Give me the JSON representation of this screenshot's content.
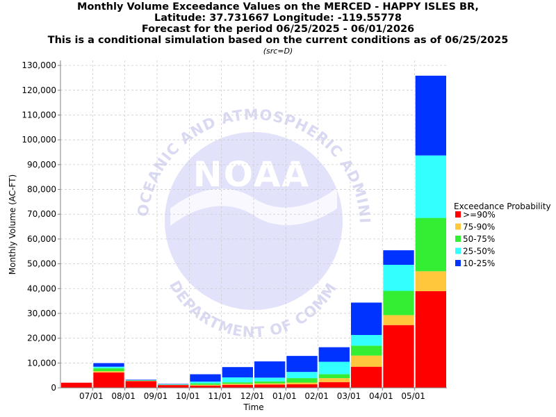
{
  "header": {
    "title_lines": [
      "Monthly Volume Exceedance Values on the MERCED - HAPPY ISLES BR,",
      "Latitude: 37.731667 Longitude: -119.55778",
      "Forecast for the period 06/25/2025 - 06/01/2026",
      "This is a conditional simulation based on the current conditions as of 06/25/2025"
    ],
    "src_note": "(src=D)"
  },
  "watermark": {
    "logo_text": "NOAA",
    "arc_top": "NATIONAL OCEANIC AND ATMOSPHERIC ADMINISTRATION",
    "arc_bottom": "U.S. DEPARTMENT OF COMMERCE"
  },
  "chart_data": {
    "type": "bar",
    "stacked": true,
    "xlabel": "Time",
    "ylabel": "Monthly Volume (AC-FT)",
    "ylim": [
      0,
      132000
    ],
    "yticks": [
      0,
      10000,
      20000,
      30000,
      40000,
      50000,
      60000,
      70000,
      80000,
      90000,
      100000,
      110000,
      120000,
      130000
    ],
    "ytick_labels": [
      "0",
      "10,000",
      "20,000",
      "30,000",
      "40,000",
      "50,000",
      "60,000",
      "70,000",
      "80,000",
      "90,000",
      "100,000",
      "110,000",
      "120,000",
      "130,000"
    ],
    "x_tick_labels": [
      "07/01",
      "08/01",
      "09/01",
      "10/01",
      "11/01",
      "12/01",
      "01/01",
      "02/01",
      "03/01",
      "04/01",
      "05/01"
    ],
    "grid": true,
    "legend_title": "Exceedance Probability",
    "legend_position": "right",
    "periods": [
      "2025-06",
      "2025-07",
      "2025-08",
      "2025-09",
      "2025-10",
      "2025-11",
      "2025-12",
      "2026-01",
      "2026-02",
      "2026-03",
      "2026-04",
      "2026-05"
    ],
    "series": [
      {
        "name": ">=90%",
        "color": "#ff0000",
        "values": [
          2200,
          6200,
          2700,
          1100,
          900,
          1200,
          1300,
          1400,
          2300,
          8500,
          25300,
          39000
        ]
      },
      {
        "name": "75-90%",
        "color": "#ffc83c",
        "values": [
          0,
          500,
          100,
          80,
          300,
          400,
          500,
          700,
          1600,
          4500,
          4000,
          8000
        ]
      },
      {
        "name": "50-75%",
        "color": "#33ee33",
        "values": [
          0,
          1200,
          150,
          120,
          600,
          600,
          800,
          1800,
          1600,
          4000,
          9800,
          21500
        ]
      },
      {
        "name": "25-50%",
        "color": "#33ffff",
        "values": [
          0,
          600,
          100,
          100,
          700,
          2000,
          1500,
          2500,
          5000,
          4300,
          10500,
          25200
        ]
      },
      {
        "name": "10-25%",
        "color": "#0033ff",
        "values": [
          0,
          1600,
          350,
          300,
          3100,
          4300,
          6700,
          6600,
          6000,
          13200,
          6000,
          32300
        ]
      }
    ]
  }
}
